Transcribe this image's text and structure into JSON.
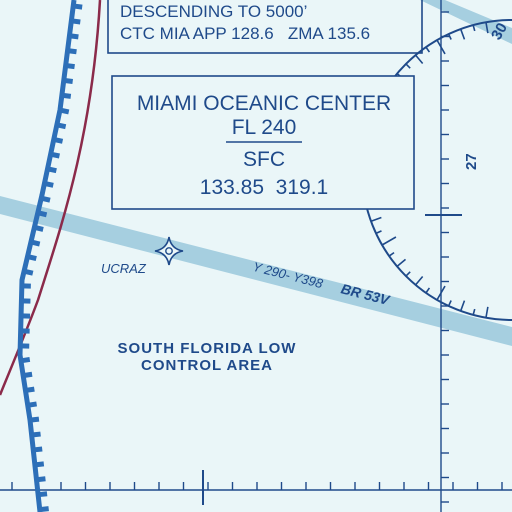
{
  "map": {
    "colors": {
      "background": "#eaf6f8",
      "ink": "#1f4a8a",
      "airway": "#a6cfe0",
      "boundary": "#2d6fb8",
      "maroon": "#8b2a4a"
    },
    "approach_note": {
      "line1": "DESCENDING TO 5000’",
      "line2": "CTC MIA APP 128.6   ZMA 135.6"
    },
    "oceanic_box": {
      "title": "MIAMI OCEANIC CENTER",
      "ceiling": "FL 240",
      "floor": "SFC",
      "frequencies": "133.85  319.1"
    },
    "waypoint": {
      "name": "UCRAZ",
      "icon": "waypoint-star-icon"
    },
    "airway": {
      "routes": "Y 290- Y398",
      "designator": "BR 53V"
    },
    "area": {
      "line1": "SOUTH FLORIDA LOW",
      "line2": "CONTROL AREA"
    },
    "compass_rose": {
      "labels": [
        "30",
        "27"
      ]
    }
  }
}
